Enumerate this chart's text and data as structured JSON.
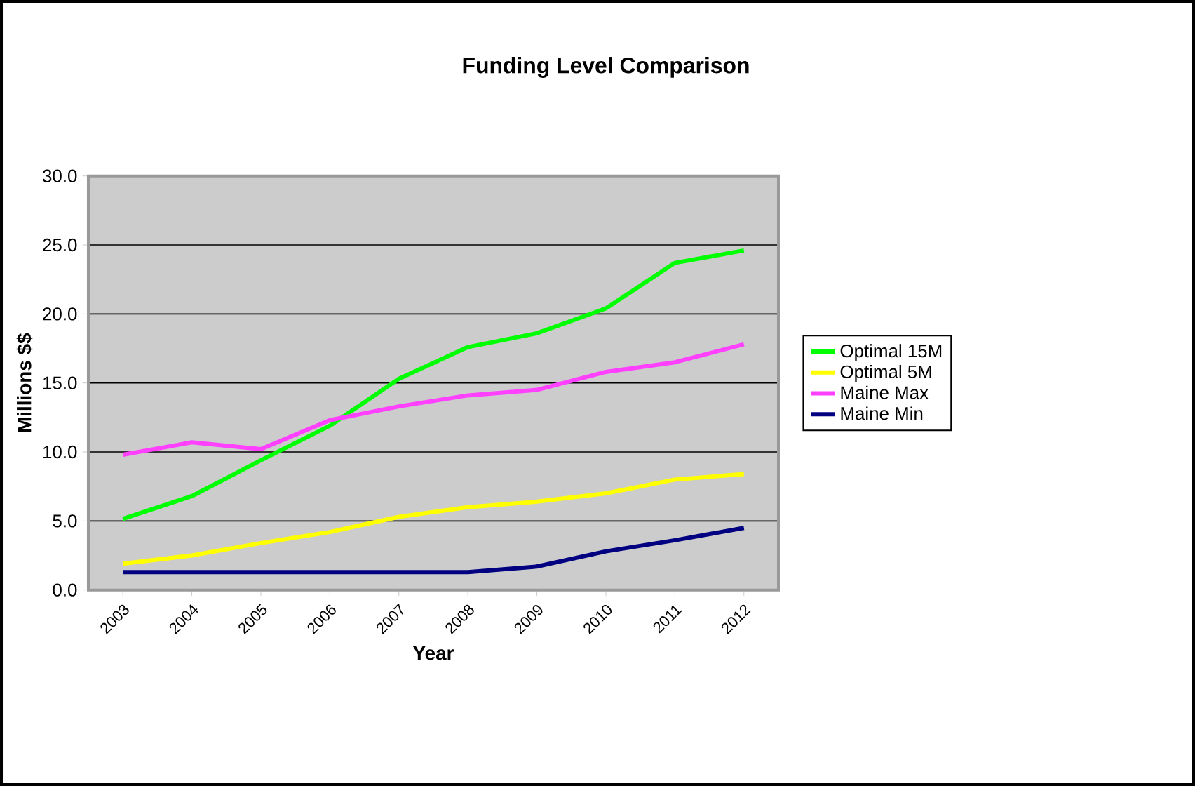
{
  "chart_data": {
    "type": "line",
    "title": "Funding Level Comparison",
    "xlabel": "Year",
    "ylabel": "Millions $$",
    "categories": [
      "2003",
      "2004",
      "2005",
      "2006",
      "2007",
      "2008",
      "2009",
      "2010",
      "2011",
      "2012"
    ],
    "series": [
      {
        "name": "Optimal 15M",
        "color": "#00ff00",
        "values": [
          5.15,
          6.8,
          9.4,
          11.9,
          15.3,
          17.6,
          18.6,
          20.4,
          23.7,
          24.6
        ]
      },
      {
        "name": "Optimal 5M",
        "color": "#ffff00",
        "values": [
          1.9,
          2.5,
          3.4,
          4.2,
          5.3,
          6.0,
          6.4,
          7.0,
          8.0,
          8.4
        ]
      },
      {
        "name": "Maine Max",
        "color": "#ff40ff",
        "values": [
          9.8,
          10.7,
          10.2,
          12.3,
          13.3,
          14.1,
          14.5,
          15.8,
          16.5,
          17.8
        ]
      },
      {
        "name": "Maine Min",
        "color": "#000080",
        "values": [
          1.3,
          1.3,
          1.3,
          1.3,
          1.3,
          1.3,
          1.7,
          2.8,
          3.6,
          4.5
        ]
      }
    ],
    "ylim": [
      0,
      30
    ],
    "yticks": [
      {
        "value": 0,
        "label": "0.0"
      },
      {
        "value": 5,
        "label": "5.0"
      },
      {
        "value": 10,
        "label": "10.0"
      },
      {
        "value": 15,
        "label": "15.0"
      },
      {
        "value": 20,
        "label": "20.0"
      },
      {
        "value": 25,
        "label": "25.0"
      },
      {
        "value": 30,
        "label": "30.0"
      }
    ],
    "grid": "y",
    "legend": "right",
    "marker": "none",
    "line_style": "solid"
  }
}
